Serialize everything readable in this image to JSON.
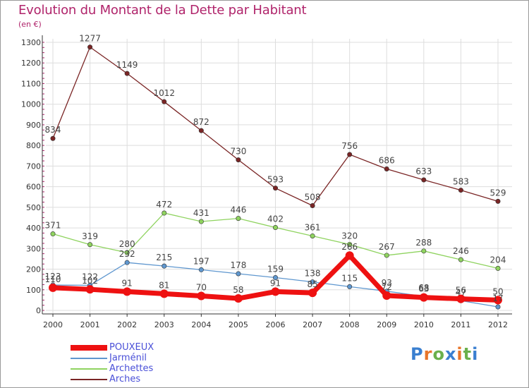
{
  "title": "Evolution du Montant de la Dette par Habitant",
  "subtitle": "(en €)",
  "logo": {
    "text": "Proxiti",
    "letter_colors": [
      "#3a7fd0",
      "#e8752a",
      "#6ab04c",
      "#3a7fd0",
      "#e8752a",
      "#6ab04c",
      "#3a7fd0"
    ]
  },
  "colors": {
    "title": "#b0246b",
    "axis": "#333333",
    "grid": "#dddddd",
    "legend_text": "#4a50d8"
  },
  "chart_data": {
    "type": "line",
    "x": [
      "2000",
      "2001",
      "2002",
      "2003",
      "2004",
      "2005",
      "2006",
      "2007",
      "2008",
      "2009",
      "2010",
      "2011",
      "2012"
    ],
    "ylim": [
      0,
      1300
    ],
    "yticks": [
      0,
      100,
      200,
      300,
      400,
      500,
      600,
      700,
      800,
      900,
      1000,
      1100,
      1200,
      1300
    ],
    "grid": true,
    "legend_position": "bottom-left",
    "series": [
      {
        "name": "POUXEUX",
        "color": "#ee1111",
        "values": [
          110,
          102,
          91,
          81,
          70,
          58,
          91,
          85,
          266,
          72,
          63,
          56,
          50
        ],
        "labels": [
          "110",
          "102",
          "91",
          "81",
          "70",
          "58",
          "91",
          "85",
          "266",
          "72",
          "63",
          "56",
          "50"
        ]
      },
      {
        "name": "Jarménil",
        "color": "#5f97cf",
        "values": [
          123,
          122,
          232,
          215,
          197,
          178,
          159,
          138,
          115,
          93,
          68,
          47,
          17
        ],
        "labels": [
          "123",
          "122",
          "232",
          "215",
          "197",
          "178",
          "159",
          "138",
          "115",
          "93",
          "68",
          "47",
          "17"
        ]
      },
      {
        "name": "Archettes",
        "color": "#8fd35f",
        "values": [
          371,
          319,
          280,
          472,
          431,
          446,
          402,
          361,
          320,
          267,
          288,
          246,
          204
        ],
        "labels": [
          "371",
          "319",
          "280",
          "472",
          "431",
          "446",
          "402",
          "361",
          "320",
          "267",
          "288",
          "246",
          "204"
        ]
      },
      {
        "name": "Arches",
        "color": "#7a2525",
        "values": [
          834,
          1277,
          1149,
          1012,
          872,
          730,
          593,
          508,
          756,
          686,
          633,
          583,
          529
        ],
        "labels": [
          "834",
          "1277",
          "1149",
          "1012",
          "872",
          "730",
          "593",
          "508",
          "756",
          "686",
          "633",
          "583",
          "529"
        ]
      }
    ]
  }
}
